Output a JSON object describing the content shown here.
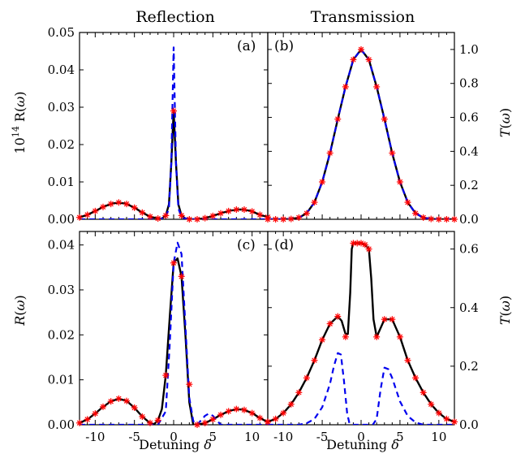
{
  "chart_data": [
    {
      "type": "line",
      "panel": "(a)",
      "column_title": "Reflection",
      "ylabel": "10^14 R(ω)",
      "xlabel": "",
      "xlim": [
        -12,
        12
      ],
      "ylim": [
        0,
        0.05
      ],
      "xticks": [
        -10,
        -5,
        0,
        5,
        10
      ],
      "yticks": [
        0,
        0.01,
        0.02,
        0.03,
        0.04,
        0.05
      ],
      "ytick_labels": [
        "0.00",
        "0.01",
        "0.02",
        "0.03",
        "0.04",
        "0.05"
      ],
      "series": [
        {
          "style": "solid",
          "color": "#000000",
          "x": [
            -12,
            -11,
            -10,
            -9,
            -8,
            -7,
            -6,
            -5,
            -4,
            -3,
            -2,
            -1.5,
            -1,
            -0.6,
            -0.3,
            0,
            0.3,
            0.6,
            1,
            1.5,
            2,
            3,
            4,
            5,
            6,
            7,
            8,
            9,
            10,
            11,
            12
          ],
          "y": [
            0.0005,
            0.0012,
            0.0022,
            0.0033,
            0.0041,
            0.0045,
            0.0041,
            0.0031,
            0.0018,
            0.0007,
            0.0002,
            0.0002,
            0.001,
            0.004,
            0.015,
            0.029,
            0.015,
            0.004,
            0.001,
            0.0002,
            0,
            0,
            0.0003,
            0.0009,
            0.0016,
            0.0022,
            0.0026,
            0.0026,
            0.0021,
            0.0012,
            0.0006
          ]
        },
        {
          "style": "dashed",
          "color": "#0000ee",
          "x": [
            -12,
            -2,
            -1,
            -0.6,
            -0.3,
            0,
            0.3,
            0.6,
            1,
            2,
            12
          ],
          "y": [
            0,
            0,
            0.0005,
            0.003,
            0.015,
            0.046,
            0.015,
            0.003,
            0.0005,
            0,
            0
          ]
        },
        {
          "style": "markers",
          "color": "#ff0000",
          "x": [
            -12,
            -11,
            -10,
            -9,
            -8,
            -7,
            -6,
            -5,
            -4,
            -3,
            -2,
            -1,
            0,
            1,
            2,
            3,
            4,
            5,
            6,
            7,
            8,
            9,
            10,
            11,
            12
          ],
          "y": [
            0.0005,
            0.0012,
            0.0022,
            0.0033,
            0.0041,
            0.0045,
            0.0041,
            0.0031,
            0.0018,
            0.0007,
            0.0002,
            0.001,
            0.029,
            0.001,
            0,
            0,
            0.0003,
            0.0009,
            0.0016,
            0.0022,
            0.0026,
            0.0026,
            0.0021,
            0.0012,
            0.0006
          ]
        }
      ]
    },
    {
      "type": "line",
      "panel": "(b)",
      "column_title": "Transmission",
      "ylabel": "T(ω)",
      "xlabel": "",
      "xlim": [
        -12,
        12
      ],
      "ylim": [
        0,
        1.1
      ],
      "xticks": [
        -10,
        -5,
        0,
        5,
        10
      ],
      "yticks": [
        0,
        0.2,
        0.4,
        0.6,
        0.8,
        1.0
      ],
      "ytick_labels": [
        "0.0",
        "0.2",
        "0.4",
        "0.6",
        "0.8",
        "1.0"
      ],
      "series": [
        {
          "style": "solid",
          "color": "#000000",
          "x": [
            -12,
            -11,
            -10,
            -9,
            -8,
            -7,
            -6,
            -5,
            -4,
            -3,
            -2,
            -1,
            0,
            1,
            2,
            3,
            4,
            5,
            6,
            7,
            8,
            9,
            10,
            11,
            12
          ],
          "y": [
            0,
            0,
            0,
            0.002,
            0.01,
            0.035,
            0.1,
            0.22,
            0.39,
            0.59,
            0.78,
            0.94,
            1.0,
            0.94,
            0.78,
            0.59,
            0.39,
            0.22,
            0.1,
            0.035,
            0.01,
            0.002,
            0,
            0,
            0
          ]
        },
        {
          "style": "dashed",
          "color": "#0000ee",
          "x": [
            -12,
            -11,
            -10,
            -9,
            -8,
            -7,
            -6,
            -5,
            -4,
            -3,
            -2,
            -1,
            0,
            1,
            2,
            3,
            4,
            5,
            6,
            7,
            8,
            9,
            10,
            11,
            12
          ],
          "y": [
            0,
            0,
            0,
            0.002,
            0.01,
            0.035,
            0.1,
            0.22,
            0.39,
            0.59,
            0.78,
            0.94,
            1.0,
            0.94,
            0.78,
            0.59,
            0.39,
            0.22,
            0.1,
            0.035,
            0.01,
            0.002,
            0,
            0,
            0
          ]
        },
        {
          "style": "markers",
          "color": "#ff0000",
          "x": [
            -12,
            -11,
            -10,
            -9,
            -8,
            -7,
            -6,
            -5,
            -4,
            -3,
            -2,
            -1,
            0,
            1,
            2,
            3,
            4,
            5,
            6,
            7,
            8,
            9,
            10,
            11,
            12
          ],
          "y": [
            0,
            0,
            0,
            0.002,
            0.01,
            0.035,
            0.1,
            0.22,
            0.39,
            0.59,
            0.78,
            0.94,
            1.0,
            0.94,
            0.78,
            0.59,
            0.39,
            0.22,
            0.1,
            0.035,
            0.01,
            0.002,
            0,
            0,
            0
          ]
        }
      ]
    },
    {
      "type": "line",
      "panel": "(c)",
      "ylabel": "R(ω)",
      "xlabel": "Detuning δ",
      "xlim": [
        -12,
        12
      ],
      "ylim": [
        0,
        0.043
      ],
      "xticks": [
        -10,
        -5,
        0,
        5,
        10
      ],
      "xtick_labels": [
        "-10",
        "-5",
        "0",
        "5",
        "10"
      ],
      "yticks": [
        0,
        0.01,
        0.02,
        0.03,
        0.04
      ],
      "ytick_labels": [
        "0.00",
        "0.01",
        "0.02",
        "0.03",
        "0.04"
      ],
      "series": [
        {
          "style": "solid",
          "color": "#000000",
          "x": [
            -12,
            -11,
            -10,
            -9,
            -8,
            -7,
            -6,
            -5,
            -4,
            -3,
            -2.5,
            -2,
            -1.5,
            -1,
            -0.5,
            0,
            0.5,
            1,
            1.5,
            2,
            2.5,
            3,
            4,
            5,
            6,
            7,
            8,
            9,
            10,
            11,
            12
          ],
          "y": [
            0.0004,
            0.0012,
            0.0025,
            0.004,
            0.0052,
            0.0058,
            0.0053,
            0.0038,
            0.0018,
            0.0004,
            0.0001,
            0.001,
            0.0035,
            0.011,
            0.024,
            0.036,
            0.037,
            0.033,
            0.02,
            0.005,
            0,
            0,
            0.0004,
            0.0012,
            0.0022,
            0.003,
            0.0035,
            0.0033,
            0.0026,
            0.0015,
            0.0006
          ]
        },
        {
          "style": "dashed",
          "color": "#0000ee",
          "x": [
            -12,
            -5,
            -2,
            -1,
            -0.5,
            0,
            0.5,
            1,
            1.5,
            2,
            2.5,
            3,
            3.5,
            4,
            4.5,
            5,
            5.5,
            6,
            12
          ],
          "y": [
            0,
            0,
            0,
            0.003,
            0.018,
            0.036,
            0.0405,
            0.038,
            0.022,
            0.006,
            0.0008,
            0,
            0.001,
            0.002,
            0.0025,
            0.002,
            0.001,
            0,
            0
          ]
        },
        {
          "style": "markers",
          "color": "#ff0000",
          "x": [
            -12,
            -11,
            -10,
            -9,
            -8,
            -7,
            -6,
            -5,
            -4,
            -3,
            -2,
            -1,
            0,
            1,
            2,
            3,
            4,
            5,
            6,
            7,
            8,
            9,
            10,
            11,
            12
          ],
          "y": [
            0.0004,
            0.0012,
            0.0025,
            0.004,
            0.0052,
            0.0058,
            0.0053,
            0.0038,
            0.0018,
            0.0004,
            0.001,
            0.011,
            0.036,
            0.033,
            0.009,
            0,
            0.0004,
            0.0012,
            0.0022,
            0.003,
            0.0035,
            0.0033,
            0.0026,
            0.0015,
            0.0006
          ]
        }
      ]
    },
    {
      "type": "line",
      "panel": "(d)",
      "ylabel": "T(ω)",
      "xlabel": "Detuning δ",
      "xlim": [
        -12,
        12
      ],
      "ylim": [
        0,
        0.66
      ],
      "xticks": [
        -10,
        -5,
        0,
        5,
        10
      ],
      "xtick_labels": [
        "-10",
        "-5",
        "0",
        "5",
        "10"
      ],
      "yticks": [
        0,
        0.2,
        0.4,
        0.6
      ],
      "ytick_labels": [
        "0.0",
        "0.2",
        "0.4",
        "0.6"
      ],
      "series": [
        {
          "style": "solid",
          "color": "#000000",
          "x": [
            -12,
            -11,
            -10,
            -9,
            -8,
            -7,
            -6,
            -5,
            -4,
            -3,
            -2.5,
            -2,
            -1.7,
            -1.4,
            -1.2,
            -1,
            -0.5,
            0,
            0.5,
            1,
            1.3,
            1.6,
            2,
            2.5,
            3,
            4,
            5,
            6,
            7,
            8,
            9,
            10,
            11,
            12
          ],
          "y": [
            0.01,
            0.02,
            0.04,
            0.07,
            0.11,
            0.16,
            0.22,
            0.29,
            0.345,
            0.37,
            0.355,
            0.31,
            0.31,
            0.45,
            0.6,
            0.62,
            0.62,
            0.62,
            0.615,
            0.6,
            0.5,
            0.36,
            0.3,
            0.33,
            0.36,
            0.36,
            0.3,
            0.22,
            0.16,
            0.11,
            0.07,
            0.04,
            0.02,
            0.01
          ]
        },
        {
          "style": "dashed",
          "color": "#0000ee",
          "x": [
            -12,
            -8,
            -7,
            -6,
            -5,
            -4,
            -3.5,
            -3,
            -2.6,
            -2.2,
            -1.8,
            -1.5,
            -1,
            1.5,
            2,
            2.5,
            3,
            3.5,
            4,
            5,
            6,
            7,
            8,
            12
          ],
          "y": [
            0,
            0,
            0.005,
            0.02,
            0.06,
            0.14,
            0.2,
            0.245,
            0.24,
            0.15,
            0.04,
            0.005,
            0,
            0,
            0.02,
            0.12,
            0.195,
            0.19,
            0.16,
            0.08,
            0.03,
            0.008,
            0,
            0
          ]
        },
        {
          "style": "markers",
          "color": "#ff0000",
          "x": [
            -12,
            -11,
            -10,
            -9,
            -8,
            -7,
            -6,
            -5,
            -4,
            -3,
            -2,
            -1,
            -0.5,
            0,
            0.5,
            1,
            2,
            3,
            4,
            5,
            6,
            7,
            8,
            9,
            10,
            11,
            12
          ],
          "y": [
            0.01,
            0.02,
            0.04,
            0.07,
            0.11,
            0.16,
            0.22,
            0.29,
            0.345,
            0.37,
            0.3,
            0.62,
            0.62,
            0.62,
            0.615,
            0.6,
            0.3,
            0.36,
            0.36,
            0.3,
            0.22,
            0.16,
            0.11,
            0.07,
            0.04,
            0.02,
            0.01
          ]
        }
      ]
    }
  ]
}
